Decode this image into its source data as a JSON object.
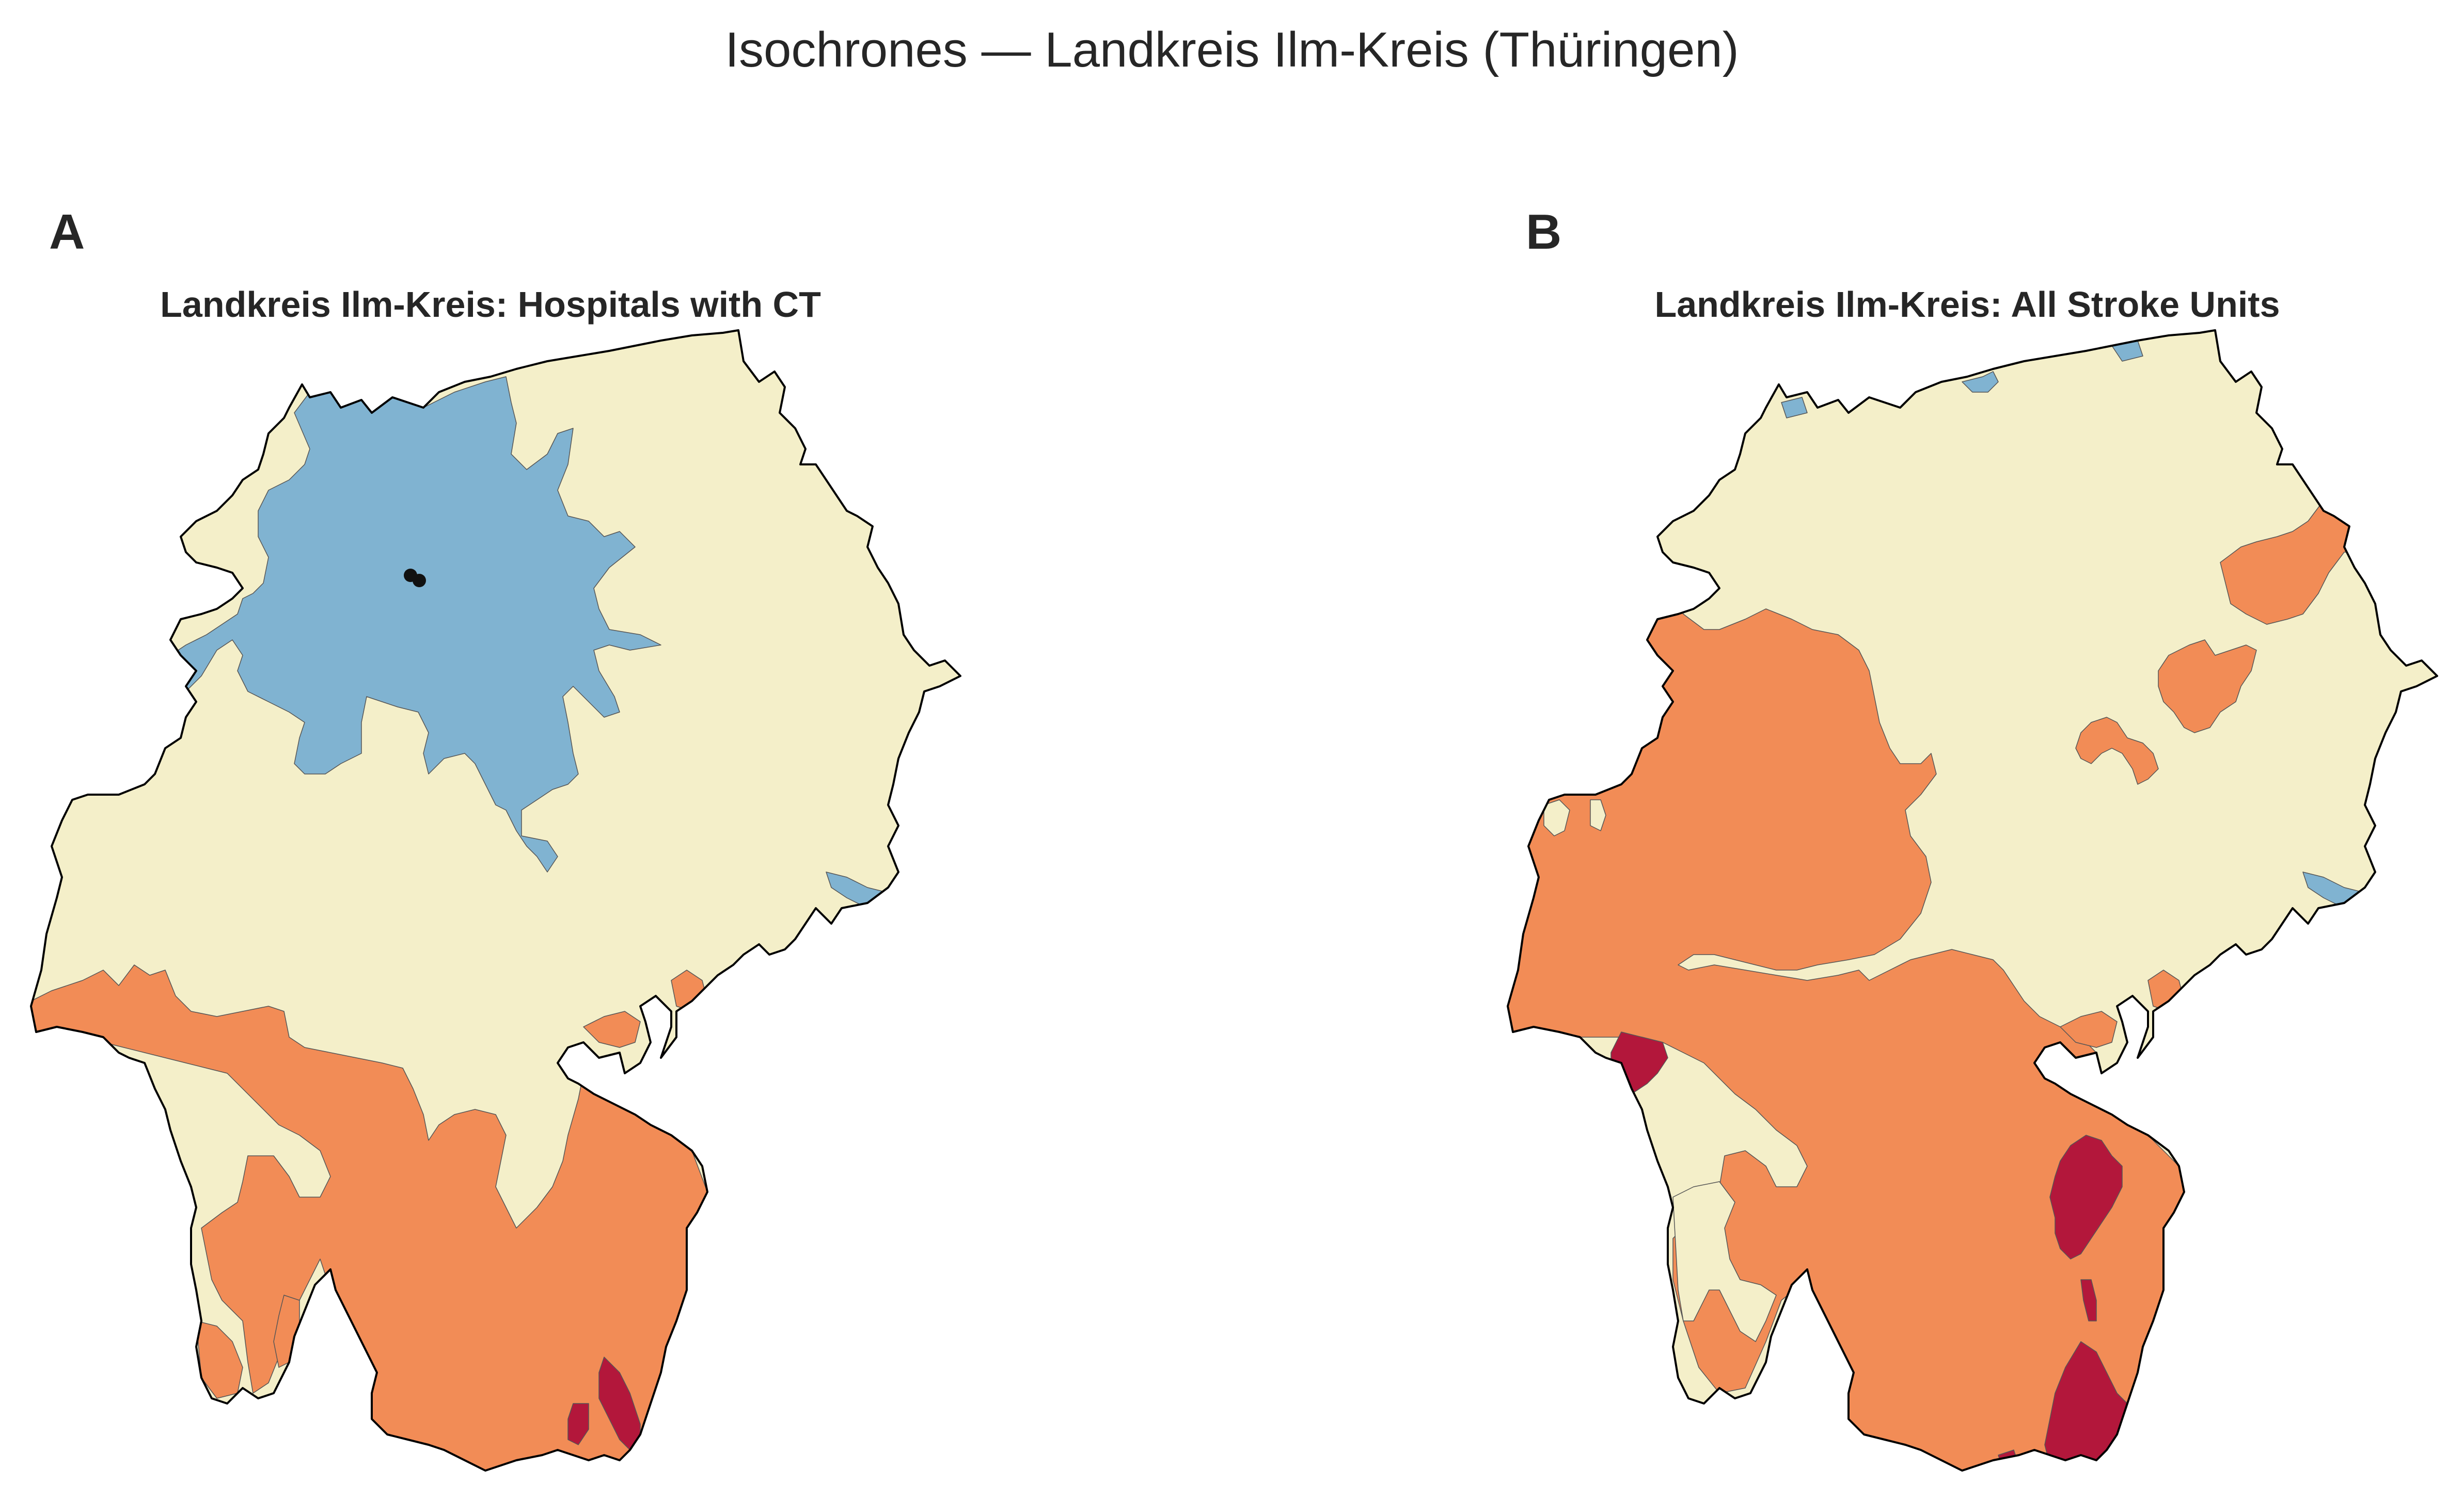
{
  "figure": {
    "title": "Isochrones — Landkreis Ilm-Kreis (Thüringen)"
  },
  "colors": {
    "blue": "#80b3d1",
    "cream": "#f4efc9",
    "orange": "#f28c56",
    "crimson": "#b3173b",
    "point": "#111111",
    "outline": "#000000"
  },
  "panels": [
    {
      "letter": "A",
      "title": "Landkreis Ilm-Kreis: Hospitals with CT",
      "zone_colors": [
        "cream",
        "blue",
        "orange",
        "crimson"
      ],
      "has_points": true
    },
    {
      "letter": "B",
      "title": "Landkreis Ilm-Kreis: All Stroke Units",
      "zone_colors": [
        "cream",
        "blue",
        "orange",
        "crimson"
      ],
      "has_points": false
    }
  ]
}
